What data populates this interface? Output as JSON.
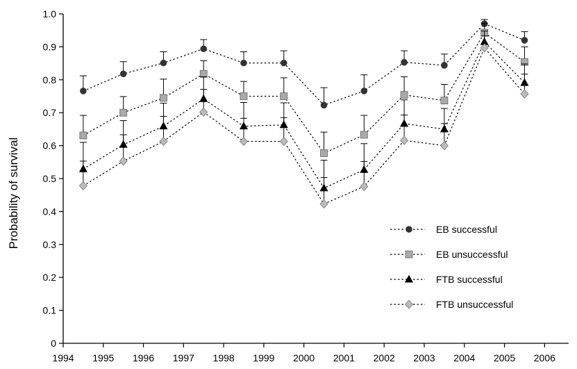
{
  "chart_data": {
    "type": "line",
    "title": "",
    "xlabel": "",
    "ylabel": "Probability of survival",
    "xlim": [
      1994,
      2006.6
    ],
    "ylim": [
      0,
      1.0
    ],
    "xticks": [
      "1994",
      "1995",
      "1996",
      "1997",
      "1998",
      "1999",
      "2000",
      "2001",
      "2002",
      "2003",
      "2004",
      "2005",
      "2006"
    ],
    "yticks": [
      "0",
      "0.1",
      "0.2",
      "0.3",
      "0.4",
      "0.5",
      "0.6",
      "0.7",
      "0.8",
      "0.9",
      "1.0"
    ],
    "grid": false,
    "legend_position": "lower-right",
    "x": [
      1994.5,
      1995.5,
      1996.5,
      1997.5,
      1998.5,
      1999.5,
      2000.5,
      2001.5,
      2002.5,
      2003.5,
      2004.5,
      2005.5
    ],
    "series": [
      {
        "name": "EB successful",
        "marker": "circle",
        "color": "#333333",
        "values": [
          0.766,
          0.818,
          0.851,
          0.894,
          0.851,
          0.851,
          0.723,
          0.766,
          0.853,
          0.844,
          0.97,
          0.92
        ],
        "upper": [
          0.812,
          0.855,
          0.885,
          0.922,
          0.885,
          0.888,
          0.776,
          0.815,
          0.888,
          0.878,
          0.983,
          0.946
        ]
      },
      {
        "name": "EB unsuccessful",
        "marker": "square",
        "color": "#aaaaaa",
        "values": [
          0.631,
          0.7,
          0.745,
          0.818,
          0.75,
          0.75,
          0.577,
          0.633,
          0.754,
          0.737,
          0.943,
          0.854
        ],
        "upper": [
          0.692,
          0.749,
          0.802,
          0.858,
          0.795,
          0.806,
          0.641,
          0.692,
          0.809,
          0.786,
          0.971,
          0.9
        ]
      },
      {
        "name": "FTB successful",
        "marker": "triangle",
        "color": "#000000",
        "values": [
          0.529,
          0.603,
          0.659,
          0.742,
          0.659,
          0.663,
          0.471,
          0.527,
          0.667,
          0.65,
          0.915,
          0.791
        ],
        "upper": [
          0.61,
          0.676,
          0.729,
          0.809,
          0.731,
          0.73,
          0.556,
          0.606,
          0.739,
          0.713,
          0.948,
          0.848
        ]
      },
      {
        "name": "FTB unsuccessful",
        "marker": "diamond",
        "color": "#bbbbbb",
        "values": [
          0.478,
          0.553,
          0.613,
          0.702,
          0.613,
          0.613,
          0.423,
          0.476,
          0.616,
          0.6,
          0.897,
          0.757
        ],
        "upper": [
          0.553,
          0.633,
          0.689,
          0.771,
          0.683,
          0.685,
          0.503,
          0.552,
          0.693,
          0.667,
          0.933,
          0.817
        ]
      }
    ]
  }
}
